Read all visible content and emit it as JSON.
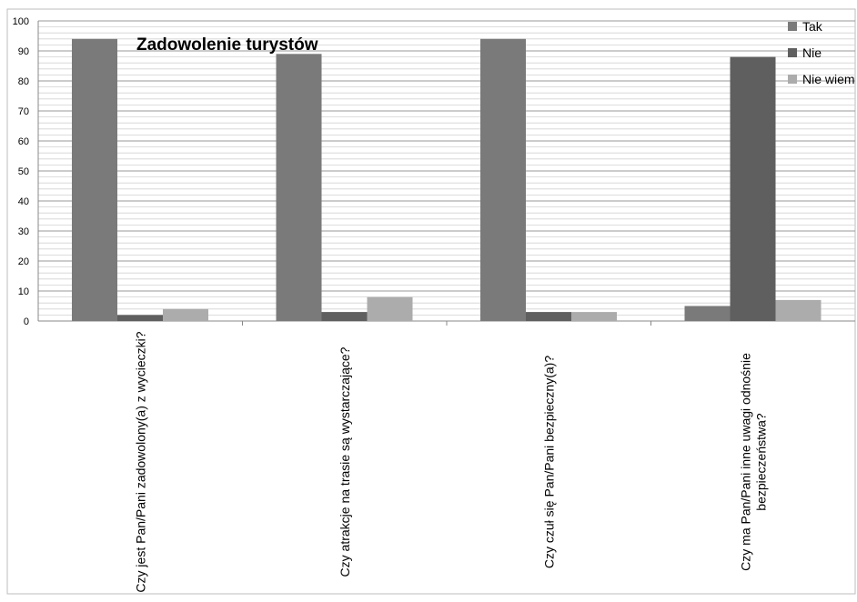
{
  "chart_data": {
    "type": "bar",
    "title": "Zadowolenie turystów",
    "xlabel": "",
    "ylabel": "",
    "ylim": [
      0,
      100
    ],
    "yticks": [
      0,
      10,
      20,
      30,
      40,
      50,
      60,
      70,
      80,
      90,
      100
    ],
    "grid": true,
    "legend_position": "top-right",
    "categories": [
      [
        "Czy jest Pan/Pani zadowolony(a) z wycieczki?"
      ],
      [
        "Czy atrakcje na trasie są wystarczające?"
      ],
      [
        "Czy czuł się Pan/Pani bezpieczny(a)?"
      ],
      [
        "Czy ma Pan/Pani inne uwagi odnośnie",
        "bezpieczeństwa?"
      ]
    ],
    "series": [
      {
        "name": "Tak",
        "color": "#7a7a7a",
        "values": [
          94,
          89,
          94,
          5
        ]
      },
      {
        "name": "Nie",
        "color": "#5f5f5f",
        "values": [
          2,
          3,
          3,
          88
        ]
      },
      {
        "name": "Nie wiem",
        "color": "#acacac",
        "values": [
          4,
          8,
          3,
          7
        ]
      }
    ]
  }
}
